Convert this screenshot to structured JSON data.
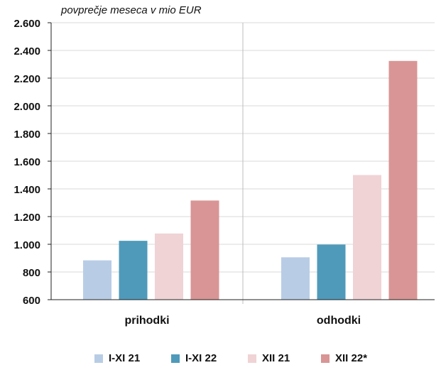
{
  "chart_data": {
    "type": "bar",
    "title": "",
    "unit_note": "povprečje meseca v mio EUR",
    "categories": [
      "prihodki",
      "odhodki"
    ],
    "series": [
      {
        "name": "I-XI 21",
        "color": "#b8cde5",
        "values": [
          884,
          906
        ]
      },
      {
        "name": "I-XI 22",
        "color": "#4f9aba",
        "values": [
          1025,
          998
        ]
      },
      {
        "name": "XII 21",
        "color": "#f0d3d5",
        "values": [
          1078,
          1500
        ]
      },
      {
        "name": "XII 22*",
        "color": "#d99595",
        "values": [
          1316,
          2324
        ]
      }
    ],
    "ylim": [
      600,
      2600
    ],
    "yticks": [
      "600",
      "800",
      "1.000",
      "1.200",
      "1.400",
      "1.600",
      "1.800",
      "2.000",
      "2.200",
      "2.400",
      "2.600"
    ],
    "ytick_values": [
      600,
      800,
      1000,
      1200,
      1400,
      1600,
      1800,
      2000,
      2200,
      2400,
      2600
    ],
    "grid": true,
    "legend": "bottom"
  }
}
